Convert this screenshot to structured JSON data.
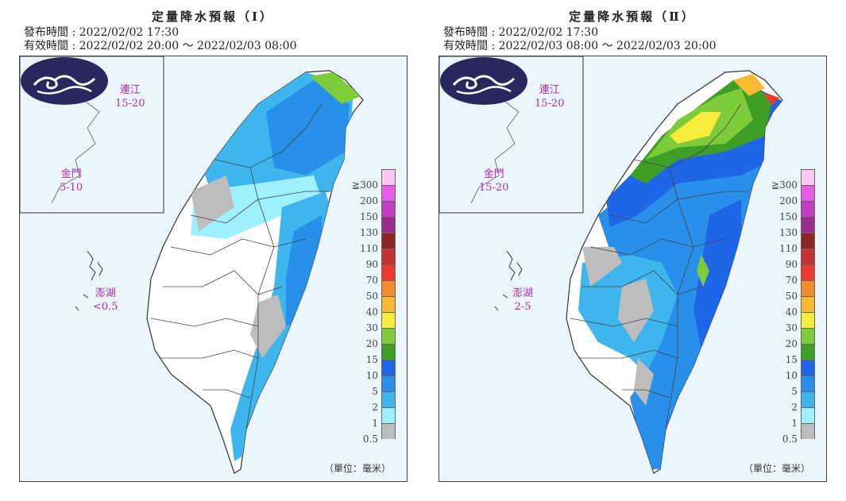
{
  "panels": [
    {
      "title": "定量降水預報（Ⅰ）",
      "issue_label": "發布時間",
      "issue_time": "2022/02/02 17:30",
      "valid_label": "有效時間",
      "valid_time": "2022/02/02 20:00 ～ 2022/02/03 08:00",
      "islands": [
        {
          "name": "連江",
          "value": "15-20"
        },
        {
          "name": "金門",
          "value": "5-10"
        },
        {
          "name": "澎湖",
          "value": "<0.5"
        }
      ],
      "unit": "（單位：毫米）"
    },
    {
      "title": "定量降水預報（Ⅱ）",
      "issue_label": "發布時間",
      "issue_time": "2022/02/02 17:30",
      "valid_label": "有效時間",
      "valid_time": "2022/02/03 08:00 ～ 2022/02/03 20:00",
      "islands": [
        {
          "name": "連江",
          "value": "15-20"
        },
        {
          "name": "金門",
          "value": "15-20"
        },
        {
          "name": "澎湖",
          "value": "2-5"
        }
      ],
      "unit": "（單位：毫米）"
    }
  ],
  "legend": {
    "labels": [
      "≧300",
      "200",
      "150",
      "130",
      "110",
      "90",
      "70",
      "50",
      "40",
      "30",
      "20",
      "15",
      "10",
      "5",
      "2",
      "1",
      "0.5"
    ],
    "colors": [
      "#fbc8f5",
      "#e85ae8",
      "#c13ec1",
      "#9c2d8e",
      "#8f2424",
      "#c33331",
      "#ec3a2e",
      "#f58c2b",
      "#f6bb32",
      "#f5ec3b",
      "#7fcc3a",
      "#3e9f26",
      "#1f66e6",
      "#2890ea",
      "#3fb5ee",
      "#9ff0ff",
      "#bdbdbd"
    ]
  },
  "colors": {
    "ocean": "#eaf5fc",
    "island_label": "#b12cb1",
    "logo": "#28285e"
  }
}
